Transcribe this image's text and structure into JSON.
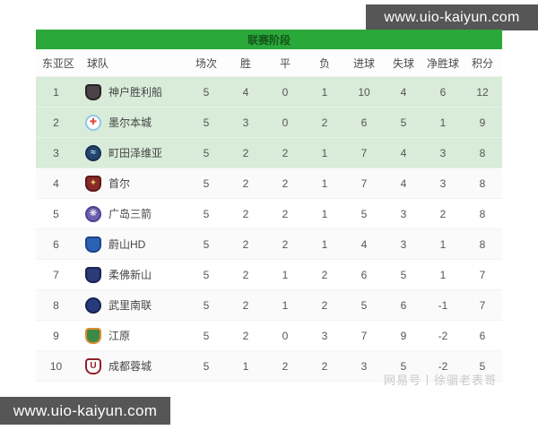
{
  "site": {
    "url_top": "www.uio-kaiyun.com",
    "url_bottom": "www.uio-kaiyun.com"
  },
  "watermark": "网易号丨徐骃老表哥",
  "colors": {
    "accent_green": "#2aa83a",
    "highlight_row": "#d8ecd9",
    "banner_box": "#565656"
  },
  "table": {
    "title": "联赛阶段",
    "columns": [
      "东亚区",
      "球队",
      "场次",
      "胜",
      "平",
      "负",
      "进球",
      "失球",
      "净胜球",
      "积分"
    ],
    "rows": [
      {
        "rank": "1",
        "team": "神户胜利船",
        "played": "5",
        "win": "4",
        "draw": "0",
        "loss": "1",
        "gf": "10",
        "ga": "4",
        "gd": "6",
        "pts": "12",
        "highlight": true,
        "logo": {
          "shape": "shield",
          "bg": "#4a4347",
          "ring": "#262224",
          "glyph": "",
          "glyph_color": "#ffffff"
        }
      },
      {
        "rank": "2",
        "team": "墨尔本城",
        "played": "5",
        "win": "3",
        "draw": "0",
        "loss": "2",
        "gf": "6",
        "ga": "5",
        "gd": "1",
        "pts": "9",
        "highlight": true,
        "logo": {
          "shape": "circle",
          "bg": "#ffffff",
          "ring": "#8fc8e8",
          "glyph": "✚",
          "glyph_color": "#e24a3b"
        }
      },
      {
        "rank": "3",
        "team": "町田泽维亚",
        "played": "5",
        "win": "2",
        "draw": "2",
        "loss": "1",
        "gf": "7",
        "ga": "4",
        "gd": "3",
        "pts": "8",
        "highlight": true,
        "logo": {
          "shape": "circle",
          "bg": "#24456f",
          "ring": "#16304f",
          "glyph": "≈",
          "glyph_color": "#bfe0f2"
        }
      },
      {
        "rank": "4",
        "team": "首尔",
        "played": "5",
        "win": "2",
        "draw": "2",
        "loss": "1",
        "gf": "7",
        "ga": "4",
        "gd": "3",
        "pts": "8",
        "highlight": false,
        "logo": {
          "shape": "shield",
          "bg": "#8a2a28",
          "ring": "#5c1a18",
          "glyph": "✦",
          "glyph_color": "#e7c76c"
        }
      },
      {
        "rank": "5",
        "team": "广岛三箭",
        "played": "5",
        "win": "2",
        "draw": "2",
        "loss": "1",
        "gf": "5",
        "ga": "3",
        "gd": "2",
        "pts": "8",
        "highlight": false,
        "logo": {
          "shape": "circle",
          "bg": "#6f5fb0",
          "ring": "#4e4190",
          "glyph": "❋",
          "glyph_color": "#ffffff"
        }
      },
      {
        "rank": "6",
        "team": "蔚山HD",
        "played": "5",
        "win": "2",
        "draw": "2",
        "loss": "1",
        "gf": "4",
        "ga": "3",
        "gd": "1",
        "pts": "8",
        "highlight": false,
        "logo": {
          "shape": "shield",
          "bg": "#2b62b5",
          "ring": "#1b4488",
          "glyph": "",
          "glyph_color": "#ffffff"
        }
      },
      {
        "rank": "7",
        "team": "柔佛新山",
        "played": "5",
        "win": "2",
        "draw": "1",
        "loss": "2",
        "gf": "6",
        "ga": "5",
        "gd": "1",
        "pts": "7",
        "highlight": false,
        "logo": {
          "shape": "shield",
          "bg": "#2c3a78",
          "ring": "#1a2450",
          "glyph": "",
          "glyph_color": "#d8413c"
        }
      },
      {
        "rank": "8",
        "team": "武里南联",
        "played": "5",
        "win": "2",
        "draw": "1",
        "loss": "2",
        "gf": "5",
        "ga": "6",
        "gd": "-1",
        "pts": "7",
        "highlight": false,
        "logo": {
          "shape": "circle",
          "bg": "#273a7e",
          "ring": "#15224f",
          "glyph": "",
          "glyph_color": "#ffffff"
        }
      },
      {
        "rank": "9",
        "team": "江原",
        "played": "5",
        "win": "2",
        "draw": "0",
        "loss": "3",
        "gf": "7",
        "ga": "9",
        "gd": "-2",
        "pts": "6",
        "highlight": false,
        "logo": {
          "shape": "shield",
          "bg": "#3c8a46",
          "ring": "#e08a2e",
          "glyph": "",
          "glyph_color": "#ffffff"
        }
      },
      {
        "rank": "10",
        "team": "成都蓉城",
        "played": "5",
        "win": "1",
        "draw": "2",
        "loss": "2",
        "gf": "3",
        "ga": "5",
        "gd": "-2",
        "pts": "5",
        "highlight": false,
        "logo": {
          "shape": "shield",
          "bg": "#ffffff",
          "ring": "#93202c",
          "glyph": "U",
          "glyph_color": "#93202c"
        }
      }
    ]
  }
}
